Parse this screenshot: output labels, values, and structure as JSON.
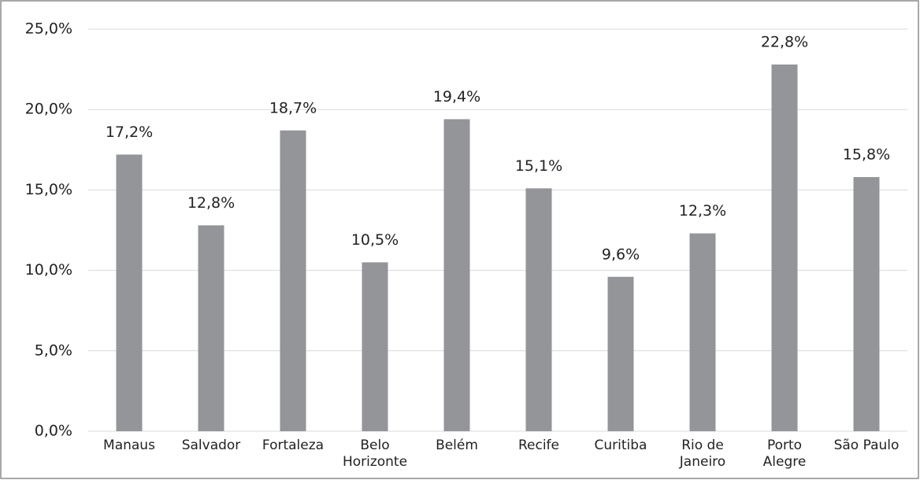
{
  "chart_data": {
    "type": "bar",
    "categories": [
      "Manaus",
      "Salvador",
      "Fortaleza",
      "Belo\nHorizonte",
      "Belém",
      "Recife",
      "Curitiba",
      "Rio de\nJaneiro",
      "Porto\nAlegre",
      "São Paulo"
    ],
    "values": [
      17.2,
      12.8,
      18.7,
      10.5,
      19.4,
      15.1,
      9.6,
      12.3,
      22.8,
      15.8
    ],
    "value_labels": [
      "17,2%",
      "12,8%",
      "18,7%",
      "10,5%",
      "19,4%",
      "15,1%",
      "9,6%",
      "12,3%",
      "22,8%",
      "15,8%"
    ],
    "color": "#939598",
    "ylim": [
      0,
      25
    ],
    "yticks": [
      {
        "value": 0,
        "label": "0,0%"
      },
      {
        "value": 5,
        "label": "5,0%"
      },
      {
        "value": 10,
        "label": "10,0%"
      },
      {
        "value": 15,
        "label": "15,0%"
      },
      {
        "value": 20,
        "label": "20,0%"
      },
      {
        "value": 25,
        "label": "25,0%"
      }
    ],
    "grid": true
  }
}
